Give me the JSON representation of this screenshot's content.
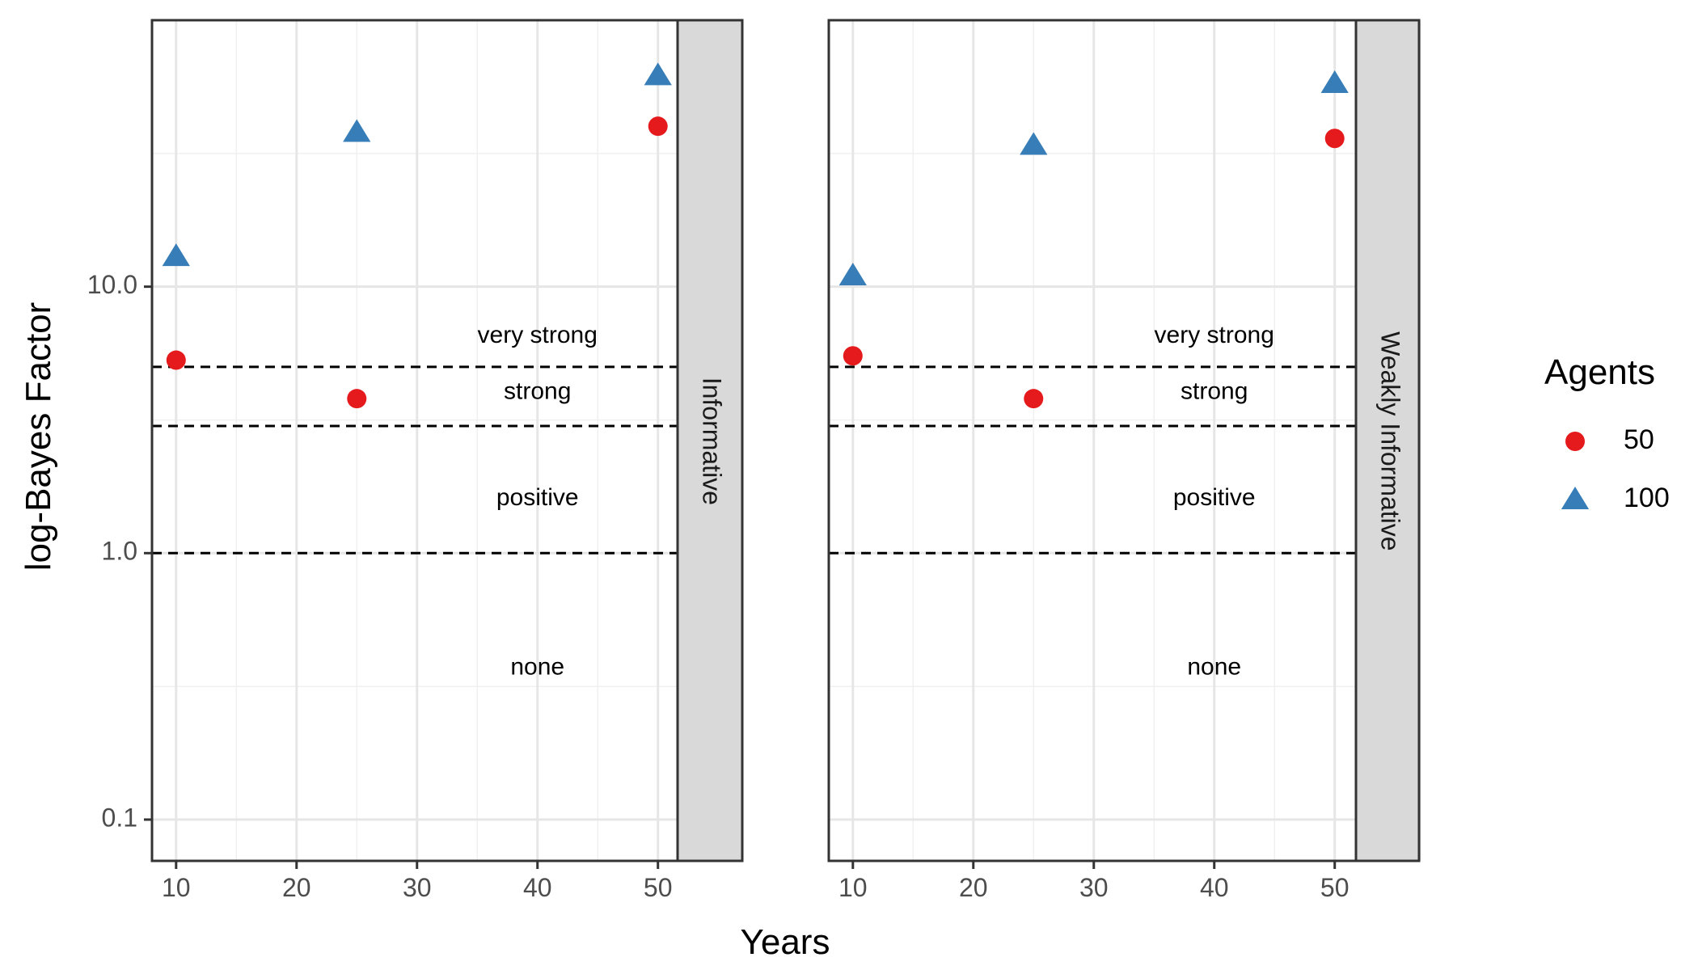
{
  "chart_data": {
    "type": "scatter",
    "xlabel": "Years",
    "ylabel": "log-Bayes Factor",
    "x_scale": "linear",
    "y_scale": "log10",
    "xlim": [
      8,
      57
    ],
    "ylim": [
      0.07,
      100
    ],
    "x_ticks": [
      10,
      20,
      30,
      40,
      50
    ],
    "x_tick_labels": [
      "10",
      "20",
      "30",
      "40",
      "50"
    ],
    "y_ticks": [
      0.1,
      1,
      10
    ],
    "y_tick_labels": [
      "0.1",
      "1.0",
      "10.0"
    ],
    "grid": true,
    "legend": {
      "title": "Agents",
      "placement": "right",
      "entries": [
        {
          "label": "50",
          "shape": "circle",
          "color": "#E41A1C"
        },
        {
          "label": "100",
          "shape": "triangle",
          "color": "#377EB8"
        }
      ]
    },
    "reference_lines": [
      {
        "y": 5,
        "style": "dashed"
      },
      {
        "y": 3,
        "style": "dashed"
      },
      {
        "y": 1,
        "style": "dashed"
      }
    ],
    "band_labels": [
      {
        "text": "very strong",
        "x": 40,
        "y": 6.5
      },
      {
        "text": "strong",
        "x": 40,
        "y": 4
      },
      {
        "text": "positive",
        "x": 40,
        "y": 1.6
      },
      {
        "text": "none",
        "x": 40,
        "y": 0.37
      }
    ],
    "panels": [
      {
        "strip": "Informative",
        "series": [
          {
            "name": "50",
            "shape": "circle",
            "color": "#E41A1C",
            "x": [
              10,
              25,
              50
            ],
            "y": [
              5.3,
              3.8,
              40
            ]
          },
          {
            "name": "100",
            "shape": "triangle",
            "color": "#377EB8",
            "x": [
              10,
              25,
              50
            ],
            "y": [
              13,
              38,
              62
            ]
          }
        ]
      },
      {
        "strip": "Weakly Informative",
        "series": [
          {
            "name": "50",
            "shape": "circle",
            "color": "#E41A1C",
            "x": [
              10,
              25,
              50
            ],
            "y": [
              5.5,
              3.8,
              36
            ]
          },
          {
            "name": "100",
            "shape": "triangle",
            "color": "#377EB8",
            "x": [
              10,
              25,
              50
            ],
            "y": [
              11,
              34,
              58
            ]
          }
        ]
      }
    ]
  }
}
